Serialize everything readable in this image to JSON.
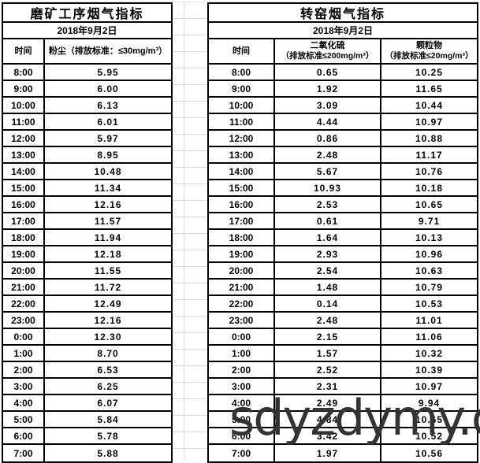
{
  "left_table": {
    "title": "磨矿工序烟气指标",
    "date": "2018年9月2日",
    "headers": {
      "time": "时间",
      "dust": "粉尘（排放标准：≤30mg/m³）"
    },
    "rows": [
      {
        "time": "8:00",
        "dust": "5.95"
      },
      {
        "time": "9:00",
        "dust": "6.00"
      },
      {
        "time": "10:00",
        "dust": "6.13"
      },
      {
        "time": "11:00",
        "dust": "6.01"
      },
      {
        "time": "12:00",
        "dust": "5.97"
      },
      {
        "time": "13:00",
        "dust": "8.95"
      },
      {
        "time": "14:00",
        "dust": "10.48"
      },
      {
        "time": "15:00",
        "dust": "11.34"
      },
      {
        "time": "16:00",
        "dust": "12.16"
      },
      {
        "time": "17:00",
        "dust": "11.57"
      },
      {
        "time": "18:00",
        "dust": "11.94"
      },
      {
        "time": "19:00",
        "dust": "12.18"
      },
      {
        "time": "20:00",
        "dust": "11.55"
      },
      {
        "time": "21:00",
        "dust": "11.72"
      },
      {
        "time": "22:00",
        "dust": "12.49"
      },
      {
        "time": "23:00",
        "dust": "12.16"
      },
      {
        "time": "0:00",
        "dust": "12.30"
      },
      {
        "time": "1:00",
        "dust": "8.70"
      },
      {
        "time": "2:00",
        "dust": "6.53"
      },
      {
        "time": "3:00",
        "dust": "6.25"
      },
      {
        "time": "4:00",
        "dust": "6.07"
      },
      {
        "time": "5:00",
        "dust": "5.84"
      },
      {
        "time": "6:00",
        "dust": "5.78"
      },
      {
        "time": "7:00",
        "dust": "5.88"
      }
    ]
  },
  "right_table": {
    "title": "转窑烟气指标",
    "date": "2018年9月2日",
    "headers": {
      "time": "时间",
      "so2_name": "二氧化硫",
      "so2_std": "（排放标准≤200mg/m³）",
      "pm_name": "颗粒物",
      "pm_std": "（排放标准≤20mg/m³）"
    },
    "rows": [
      {
        "time": "8:00",
        "so2": "0.65",
        "pm": "10.25"
      },
      {
        "time": "9:00",
        "so2": "1.92",
        "pm": "11.65"
      },
      {
        "time": "10:00",
        "so2": "3.09",
        "pm": "10.44"
      },
      {
        "time": "11:00",
        "so2": "4.44",
        "pm": "10.97"
      },
      {
        "time": "12:00",
        "so2": "0.86",
        "pm": "10.88"
      },
      {
        "time": "13:00",
        "so2": "2.48",
        "pm": "11.17"
      },
      {
        "time": "14:00",
        "so2": "5.67",
        "pm": "10.76"
      },
      {
        "time": "15:00",
        "so2": "10.93",
        "pm": "10.18"
      },
      {
        "time": "16:00",
        "so2": "2.53",
        "pm": "10.65"
      },
      {
        "time": "17:00",
        "so2": "0.61",
        "pm": "9.71"
      },
      {
        "time": "18:00",
        "so2": "1.64",
        "pm": "10.13"
      },
      {
        "time": "19:00",
        "so2": "2.93",
        "pm": "10.96"
      },
      {
        "time": "20:00",
        "so2": "2.54",
        "pm": "10.63"
      },
      {
        "time": "21:00",
        "so2": "1.48",
        "pm": "10.79"
      },
      {
        "time": "22:00",
        "so2": "0.14",
        "pm": "10.53"
      },
      {
        "time": "23:00",
        "so2": "2.48",
        "pm": "11.01"
      },
      {
        "time": "0:00",
        "so2": "2.15",
        "pm": "11.06"
      },
      {
        "time": "1:00",
        "so2": "1.57",
        "pm": "10.32"
      },
      {
        "time": "2:00",
        "so2": "2.52",
        "pm": "10.39"
      },
      {
        "time": "3:00",
        "so2": "2.31",
        "pm": "10.97"
      },
      {
        "time": "4:00",
        "so2": "2.49",
        "pm": "9.94"
      },
      {
        "time": "5:00",
        "so2": "4.84",
        "pm": "10.65"
      },
      {
        "time": "6:00",
        "so2": "3.42",
        "pm": "10.52"
      },
      {
        "time": "7:00",
        "so2": "1.97",
        "pm": "10.56"
      }
    ]
  },
  "watermark": {
    "text": "sdyzdymy.com",
    "color": "#333333"
  },
  "colors": {
    "table_border": "#000000",
    "gridline": "#d9d9d9",
    "background": "#ffffff",
    "text": "#000000"
  }
}
